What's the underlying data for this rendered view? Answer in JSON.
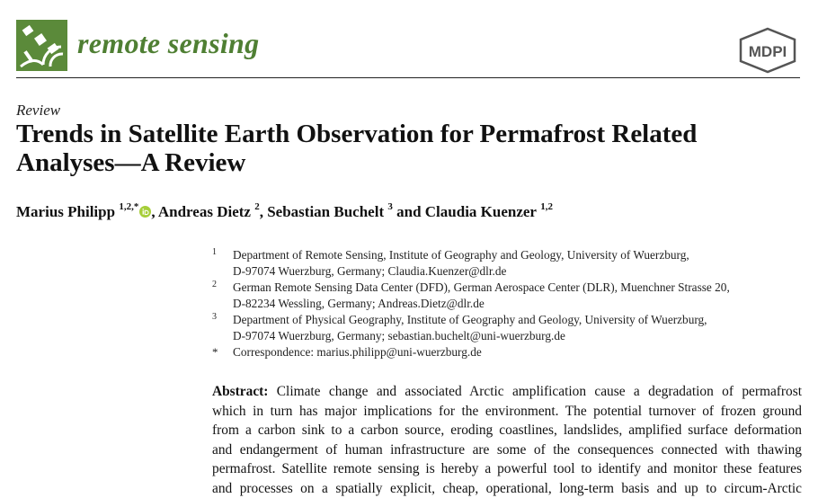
{
  "header": {
    "journal_name": "remote sensing",
    "publisher": "MDPI",
    "colors": {
      "journal_green": "#5b8a3a",
      "publisher_gray": "#555555"
    },
    "journal_icon": "satellite-icon"
  },
  "article": {
    "type": "Review",
    "title_lines": [
      "Trends in Satellite Earth Observation for Permafrost Related",
      "Analyses—A Review"
    ]
  },
  "authors": [
    {
      "name": "Marius Philipp",
      "sup": "1,2,*",
      "orcid": true,
      "separator": ", "
    },
    {
      "name": "Andreas Dietz",
      "sup": "2",
      "orcid": false,
      "separator": ", "
    },
    {
      "name": "Sebastian Buchelt",
      "sup": "3",
      "orcid": false,
      "separator": " and "
    },
    {
      "name": "Claudia Kuenzer",
      "sup": "1,2",
      "orcid": false,
      "separator": ""
    }
  ],
  "affiliations": [
    {
      "mark": "1",
      "lines": [
        "Department of Remote Sensing, Institute of Geography and Geology, University of Wuerzburg,",
        "D-97074 Wuerzburg, Germany; Claudia.Kuenzer@dlr.de"
      ]
    },
    {
      "mark": "2",
      "lines": [
        "German Remote Sensing Data Center (DFD), German Aerospace Center (DLR), Muenchner Strasse 20,",
        "D-82234 Wessling, Germany; Andreas.Dietz@dlr.de"
      ]
    },
    {
      "mark": "3",
      "lines": [
        "Department of Physical Geography, Institute of Geography and Geology, University of Wuerzburg,",
        "D-97074 Wuerzburg, Germany; sebastian.buchelt@uni-wuerzburg.de"
      ]
    },
    {
      "mark": "*",
      "lines": [
        "Correspondence: marius.philipp@uni-wuerzburg.de"
      ]
    }
  ],
  "abstract": {
    "label": "Abstract:",
    "first_line": "Climate change and associated Arctic amplification cause a degradation of permafrost",
    "lines": [
      "which in turn has major implications for the environment. The potential turnover of frozen ground",
      "from a carbon sink to a carbon source, eroding coastlines, landslides, amplified surface deformation",
      "and endangerment of human infrastructure are some of the consequences connected with thawing",
      "permafrost. Satellite remote sensing is hereby a powerful tool to identify and monitor these features",
      "and processes on a spatially explicit, cheap, operational, long-term basis and up to circum-Arctic"
    ]
  }
}
